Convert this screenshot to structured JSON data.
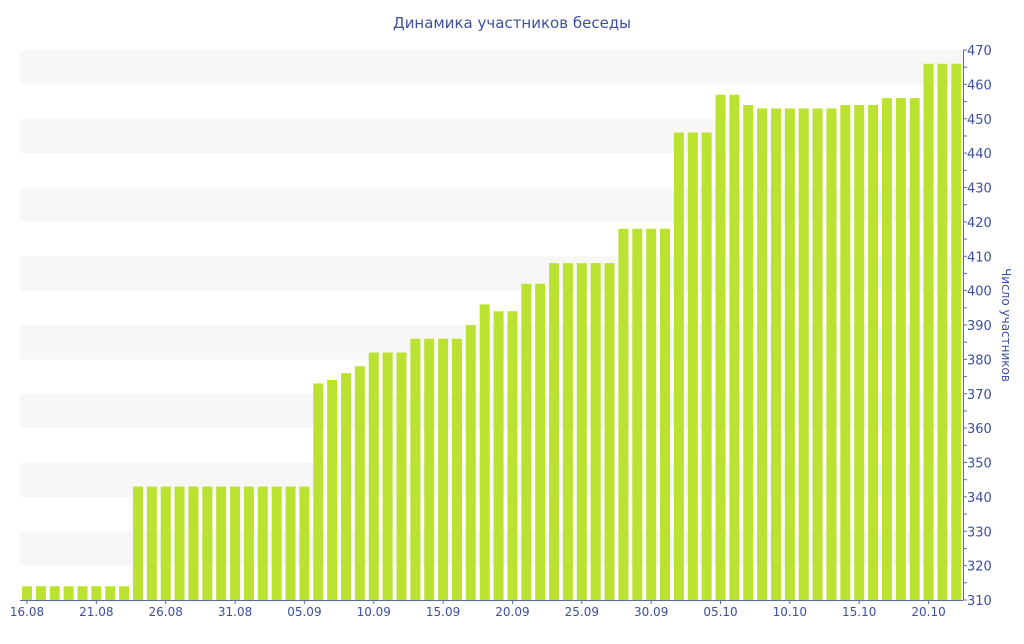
{
  "chart_data": {
    "type": "bar",
    "title": "Динамика участников беседы",
    "xlabel": "",
    "ylabel": "Число участников",
    "ylim": [
      310,
      470
    ],
    "y_ticks": [
      310,
      320,
      330,
      340,
      350,
      360,
      370,
      380,
      390,
      400,
      410,
      420,
      430,
      440,
      450,
      460,
      470
    ],
    "y_axis_side": "right",
    "grid": "alternating horizontal bands",
    "bar_color": "#bce231",
    "text_color": "#3d4f9f",
    "categories": [
      "16.08",
      "17.08",
      "18.08",
      "19.08",
      "20.08",
      "21.08",
      "22.08",
      "23.08",
      "24.08",
      "25.08",
      "26.08",
      "27.08",
      "28.08",
      "29.08",
      "30.08",
      "31.08",
      "01.09",
      "02.09",
      "03.09",
      "04.09",
      "05.09",
      "06.09",
      "07.09",
      "08.09",
      "09.09",
      "10.09",
      "11.09",
      "12.09",
      "13.09",
      "14.09",
      "15.09",
      "16.09",
      "17.09",
      "18.09",
      "19.09",
      "20.09",
      "21.09",
      "22.09",
      "23.09",
      "24.09",
      "25.09",
      "26.09",
      "27.09",
      "28.09",
      "29.09",
      "30.09",
      "01.10",
      "02.10",
      "03.10",
      "04.10",
      "05.10",
      "06.10",
      "07.10",
      "08.10",
      "09.10",
      "10.10",
      "11.10",
      "12.10",
      "13.10",
      "14.10",
      "15.10",
      "16.10",
      "17.10",
      "18.10",
      "19.10",
      "20.10",
      "21.10",
      "22.10"
    ],
    "values": [
      314,
      314,
      314,
      314,
      314,
      314,
      314,
      314,
      343,
      343,
      343,
      343,
      343,
      343,
      343,
      343,
      343,
      343,
      343,
      343,
      343,
      373,
      374,
      376,
      378,
      382,
      382,
      382,
      386,
      386,
      386,
      386,
      390,
      396,
      394,
      394,
      402,
      402,
      408,
      408,
      408,
      408,
      408,
      418,
      418,
      418,
      418,
      446,
      446,
      446,
      457,
      457,
      454,
      453,
      453,
      453,
      453,
      453,
      453,
      454,
      454,
      454,
      456,
      456,
      456,
      466,
      466,
      466
    ],
    "x_tick_labels": [
      "16.08",
      "21.08",
      "26.08",
      "31.08",
      "05.09",
      "10.09",
      "15.09",
      "20.09",
      "25.09",
      "30.09",
      "05.10",
      "10.10",
      "15.10",
      "20.10"
    ]
  }
}
